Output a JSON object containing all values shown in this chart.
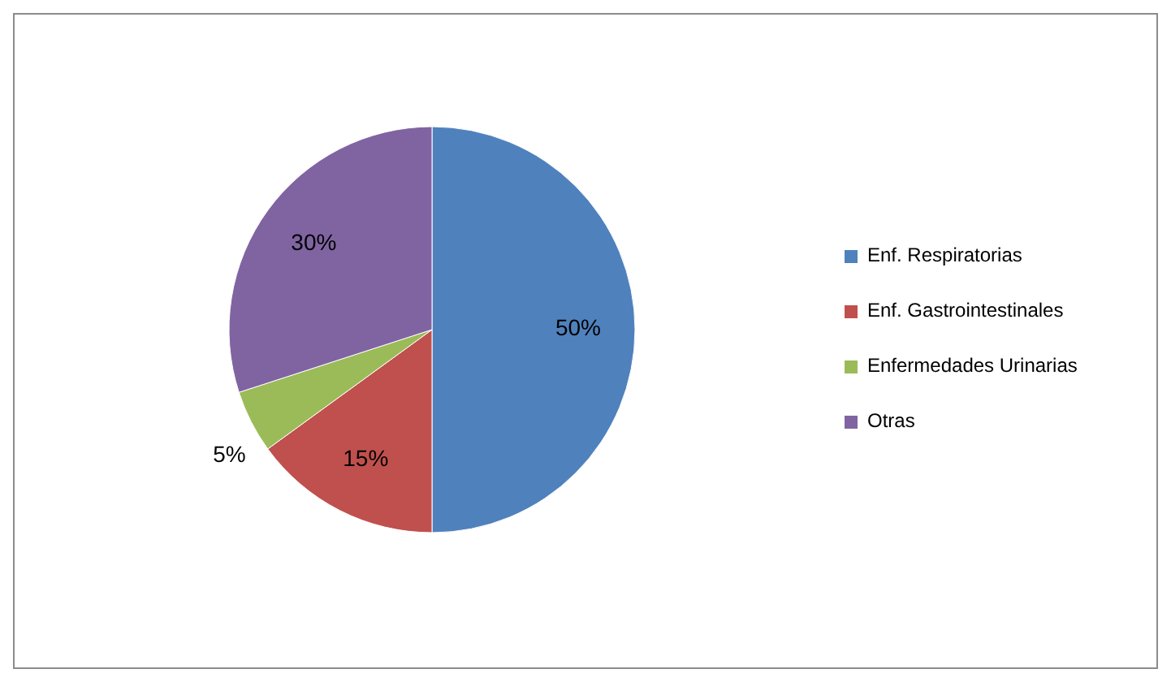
{
  "chart_data": {
    "type": "pie",
    "categories": [
      "Enf. Respiratorias",
      "Enf. Gastrointestinales",
      "Enfermedades Urinarias",
      "Otras"
    ],
    "values": [
      50,
      15,
      5,
      30
    ],
    "colors": [
      "#4f81bd",
      "#c0504d",
      "#9bbb59",
      "#8064a2"
    ],
    "value_labels": [
      "50%",
      "15%",
      "5%",
      "30%"
    ],
    "legend": "right"
  }
}
